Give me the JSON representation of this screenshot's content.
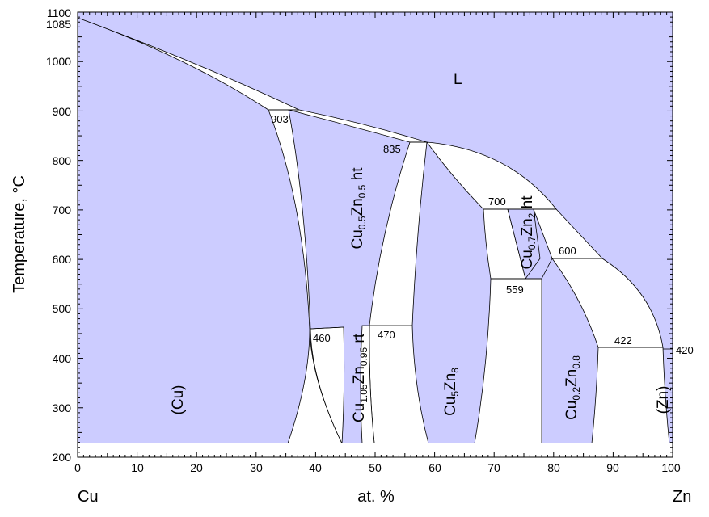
{
  "axes": {
    "x_title": "at. %",
    "y_title": "Temperature, °C",
    "x_left_element": "Cu",
    "x_right_element": "Zn",
    "x_ticks": [
      "0",
      "10",
      "20",
      "30",
      "40",
      "50",
      "60",
      "70",
      "80",
      "90",
      "100"
    ],
    "y_ticks": [
      "200",
      "300",
      "400",
      "500",
      "600",
      "700",
      "800",
      "900",
      "1000",
      "1100"
    ]
  },
  "temperatures": {
    "cu_melt": "1085",
    "t903": "903",
    "t835": "835",
    "t700": "700",
    "t600": "600",
    "t559": "559",
    "t460": "460",
    "t470": "470",
    "t422": "422",
    "t420": "420"
  },
  "phases": {
    "liquid": "L",
    "cu": "(Cu)",
    "zn": "(Zn)",
    "cu05zn05_ht": {
      "a": "Cu",
      "a_sub": "0.5",
      "b": "Zn",
      "b_sub": "0.5",
      "suffix": " ht"
    },
    "cu105zn095_rt": {
      "a": "Cu",
      "a_sub": "1.05",
      "b": "Zn",
      "b_sub": "0.95",
      "suffix": " rt"
    },
    "cu5zn8": {
      "a": "Cu",
      "a_sub": "5",
      "b": "Zn",
      "b_sub": "8",
      "suffix": ""
    },
    "cu07zn2_ht": {
      "a": "Cu",
      "a_sub": "0.7",
      "b": "Zn",
      "b_sub": "2",
      "suffix": " ht"
    },
    "cu02zn08": {
      "a": "Cu",
      "a_sub": "0.2",
      "b": "Zn",
      "b_sub": "0.8",
      "suffix": ""
    }
  },
  "colors": {
    "phase_fill": "#ccccff",
    "two_phase_fill": "#ffffff",
    "line": "#000000"
  }
}
